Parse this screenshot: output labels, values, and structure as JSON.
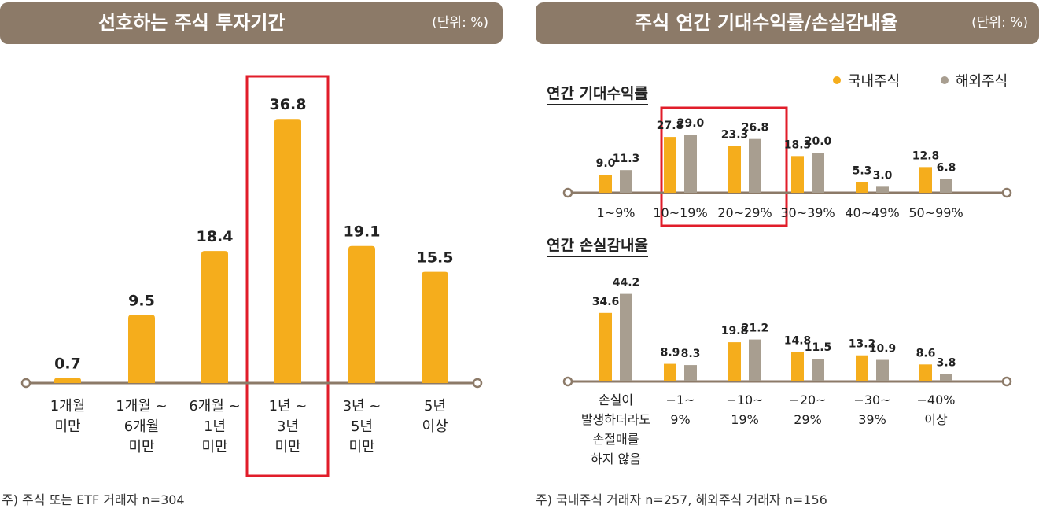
{
  "left": {
    "title": "선호하는 주식 투자기간",
    "unit": "(단위: %)",
    "footnote": "주) 주식 또는 ETF 거래자 n=304"
  },
  "right": {
    "title": "주식 연간 기대수익률/손실감내율",
    "unit": "(단위: %)",
    "footnote": "주) 국내주식 거래자 n=257, 해외주식 거래자 n=156",
    "legend": [
      {
        "label": "국내주식",
        "color": "#f5ad1c"
      },
      {
        "label": "해외주식",
        "color": "#a89e90"
      }
    ]
  },
  "colors": {
    "domestic": "#f5ad1c",
    "overseas": "#a89e90",
    "axis": "#8c7a68",
    "highlight": "#e11d2a"
  },
  "chart_data": [
    {
      "type": "bar",
      "title": "선호하는 주식 투자기간",
      "categories": [
        [
          "1개월",
          "미만"
        ],
        [
          "1개월 ~",
          "6개월",
          "미만"
        ],
        [
          "6개월 ~",
          "1년",
          "미만"
        ],
        [
          "1년 ~",
          "3년",
          "미만"
        ],
        [
          "3년 ~",
          "5년",
          "미만"
        ],
        [
          "5년",
          "이상"
        ]
      ],
      "values": [
        0.7,
        9.5,
        18.4,
        36.8,
        19.1,
        15.5
      ],
      "value_labels": [
        "0.7",
        "9.5",
        "18.4",
        "36.8",
        "19.1",
        "15.5"
      ],
      "ylim": [
        0,
        40
      ],
      "highlight_index": 3,
      "grid": false
    },
    {
      "type": "bar",
      "title": "연간 기대수익률",
      "categories": [
        "1~9%",
        "10~19%",
        "20~29%",
        "30~39%",
        "40~49%",
        "50~99%"
      ],
      "series": [
        {
          "name": "국내주식",
          "values": [
            9.0,
            27.8,
            23.3,
            18.3,
            5.3,
            12.8
          ],
          "labels": [
            "9.0",
            "27.8",
            "23.3",
            "18.3",
            "5.3",
            "12.8"
          ]
        },
        {
          "name": "해외주식",
          "values": [
            11.3,
            29.0,
            26.8,
            20.0,
            3.0,
            6.8
          ],
          "labels": [
            "11.3",
            "29.0",
            "26.8",
            "20.0",
            "3.0",
            "6.8"
          ]
        }
      ],
      "ylim": [
        0,
        30
      ],
      "highlight_indices": [
        1,
        2
      ],
      "legend": "top-right",
      "grid": false
    },
    {
      "type": "bar",
      "title": "연간 손실감내율",
      "categories": [
        [
          "손실이",
          "발생하더라도",
          "손절매를",
          "하지 않음"
        ],
        [
          "−1~",
          "9%"
        ],
        [
          "−10~",
          "19%"
        ],
        [
          "−20~",
          "29%"
        ],
        [
          "−30~",
          "39%"
        ],
        [
          "−40%",
          "이상"
        ]
      ],
      "series": [
        {
          "name": "국내주식",
          "values": [
            34.6,
            8.9,
            19.8,
            14.8,
            13.2,
            8.6
          ],
          "labels": [
            "34.6",
            "8.9",
            "19.8",
            "14.8",
            "13.2",
            "8.6"
          ]
        },
        {
          "name": "해외주식",
          "values": [
            44.2,
            8.3,
            21.2,
            11.5,
            10.9,
            3.8
          ],
          "labels": [
            "44.2",
            "8.3",
            "21.2",
            "11.5",
            "10.9",
            "3.8"
          ]
        }
      ],
      "ylim": [
        0,
        45
      ],
      "legend": "top-right",
      "grid": false
    }
  ]
}
